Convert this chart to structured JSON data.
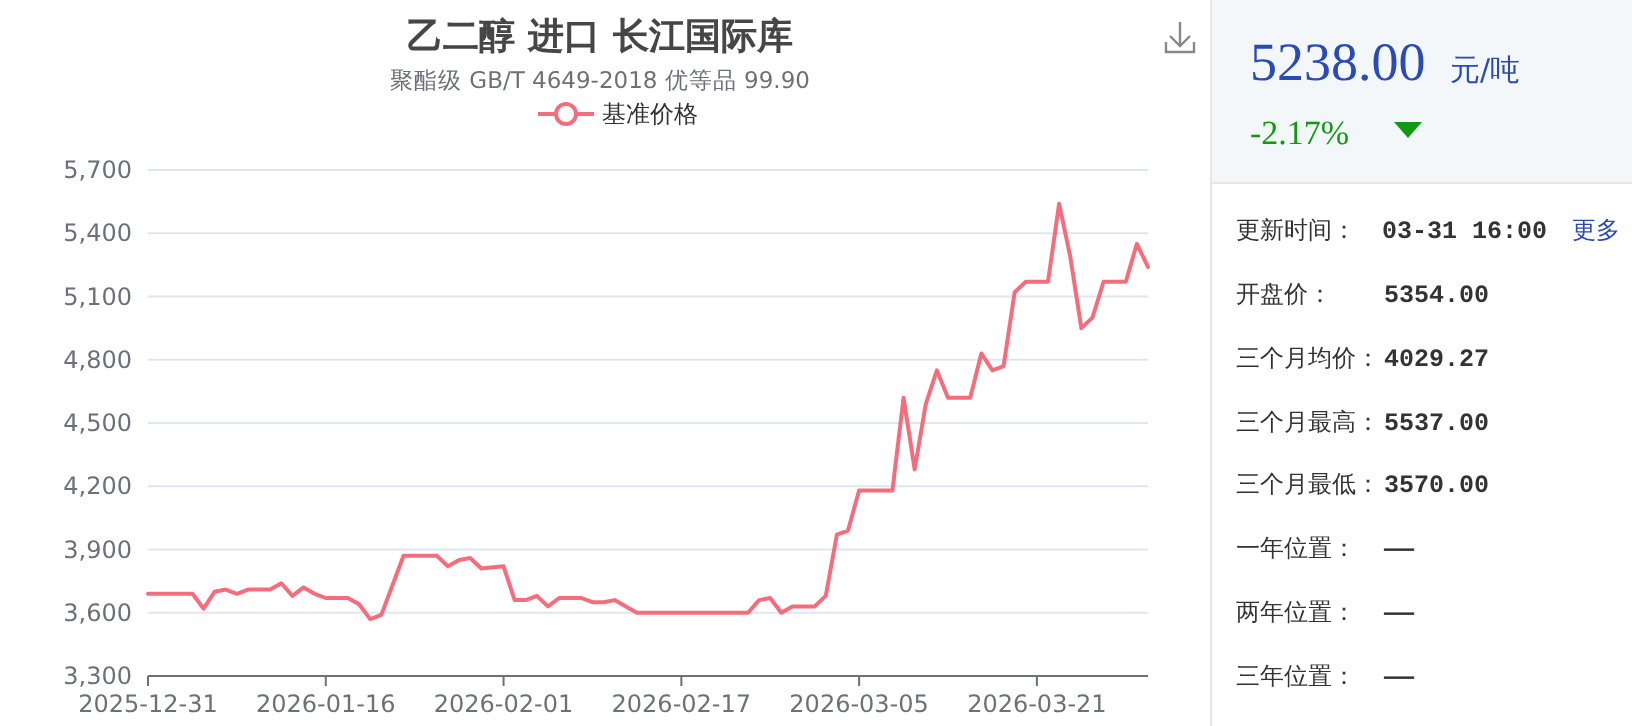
{
  "chart_data": [
    {
      "type": "line",
      "title": "乙二醇 进口 长江国际库",
      "subtitle": "聚酯级 GB/T 4649-2018 优等品 99.90",
      "xlim": [
        "2025-12-31",
        "2026-03-31"
      ],
      "xticks": [
        "2025-12-31",
        "2026-01-16",
        "2026-02-01",
        "2026-02-17",
        "2026-03-05",
        "2026-03-21"
      ],
      "ylim": [
        3300,
        5700
      ],
      "yticks": [
        {
          "value": 3300,
          "label": "3,300"
        },
        {
          "value": 3600,
          "label": "3,600"
        },
        {
          "value": 3900,
          "label": "3,900"
        },
        {
          "value": 4200,
          "label": "4,200"
        },
        {
          "value": 4500,
          "label": "4,500"
        },
        {
          "value": 4800,
          "label": "4,800"
        },
        {
          "value": 5100,
          "label": "5,100"
        },
        {
          "value": 5400,
          "label": "5,400"
        },
        {
          "value": 5700,
          "label": "5,700"
        }
      ],
      "grid": "y",
      "legend": "top",
      "line_style": "solid",
      "series": [
        {
          "name": "基准价格",
          "color": "#f56d7c",
          "x": [
            "2025-12-31",
            "2026-01-04",
            "2026-01-05",
            "2026-01-06",
            "2026-01-07",
            "2026-01-08",
            "2026-01-09",
            "2026-01-11",
            "2026-01-12",
            "2026-01-13",
            "2026-01-14",
            "2026-01-15",
            "2026-01-16",
            "2026-01-18",
            "2026-01-19",
            "2026-01-20",
            "2026-01-21",
            "2026-01-23",
            "2026-01-26",
            "2026-01-27",
            "2026-01-28",
            "2026-01-29",
            "2026-01-30",
            "2026-02-01",
            "2026-02-02",
            "2026-02-03",
            "2026-02-04",
            "2026-02-05",
            "2026-02-06",
            "2026-02-08",
            "2026-02-09",
            "2026-02-10",
            "2026-02-11",
            "2026-02-13",
            "2026-02-17",
            "2026-02-23",
            "2026-02-24",
            "2026-02-25",
            "2026-02-26",
            "2026-02-27",
            "2026-03-01",
            "2026-03-02",
            "2026-03-03",
            "2026-03-04",
            "2026-03-05",
            "2026-03-08",
            "2026-03-09",
            "2026-03-10",
            "2026-03-11",
            "2026-03-12",
            "2026-03-13",
            "2026-03-15",
            "2026-03-16",
            "2026-03-17",
            "2026-03-18",
            "2026-03-19",
            "2026-03-20",
            "2026-03-21",
            "2026-03-22",
            "2026-03-23",
            "2026-03-24",
            "2026-03-25",
            "2026-03-26",
            "2026-03-27",
            "2026-03-29",
            "2026-03-30",
            "2026-03-31"
          ],
          "values": [
            3690,
            3690,
            3620,
            3700,
            3710,
            3690,
            3710,
            3710,
            3740,
            3680,
            3720,
            3690,
            3670,
            3670,
            3640,
            3570,
            3590,
            3870,
            3870,
            3820,
            3850,
            3860,
            3810,
            3820,
            3660,
            3660,
            3680,
            3630,
            3670,
            3670,
            3650,
            3650,
            3660,
            3600,
            3600,
            3600,
            3660,
            3670,
            3600,
            3630,
            3630,
            3680,
            3970,
            3990,
            4180,
            4180,
            4620,
            4280,
            4590,
            4750,
            4620,
            4620,
            4830,
            4750,
            4770,
            5120,
            5170,
            5170,
            5170,
            5540,
            5290,
            4950,
            5000,
            5170,
            5170,
            5350,
            5240
          ]
        }
      ]
    },
    {
      "type": "other",
      "annotations": [
        "5238.00",
        "元/吨",
        "-2.17%",
        "更新时间：",
        "03-31 16:00",
        "更多",
        "开盘价：",
        "5354.00",
        "三个月均价：",
        "4029.27",
        "三个月最高：",
        "5537.00",
        "三个月最低：",
        "3570.00",
        "一年位置：",
        "——",
        "两年位置：",
        "——",
        "三年位置：",
        "——"
      ]
    }
  ]
}
